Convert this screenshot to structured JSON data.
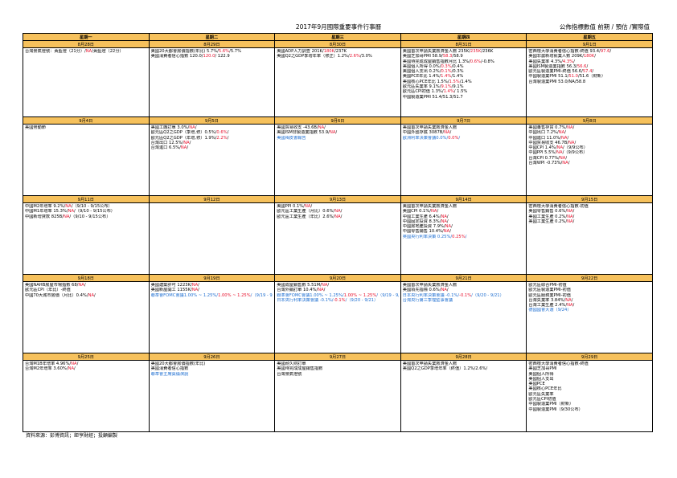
{
  "page": {
    "title": "2017年9月國際重要事件行事曆",
    "legend": "公佈指標數值 前期 / 預估 /實際值",
    "source": "資料來源：彭博資訊；鉅亨財經；投顧編製"
  },
  "weekdays": [
    "星期一",
    "星期二",
    "星期三",
    "星期四",
    "星期五"
  ],
  "weeks": [
    {
      "dates": [
        "8月28日",
        "8月29日",
        "8月30日",
        "8月31日",
        "9月1日"
      ],
      "cells": [
        [
          [
            "台灣景氣燈號：黃藍燈（21分）/",
            "NA",
            "/黃藍燈（22分）"
          ]
        ],
        [
          [
            "美國20大都會房價指數(年比) 5.7%/",
            "5.6%",
            "/5.7%"
          ],
          [
            "美國消費者信心指數 120.0/",
            "120.0",
            "/ 122.9"
          ]
        ],
        [
          [
            "美國ADP人力調查 201K/",
            "180K",
            "/237K"
          ],
          [
            "美國Q2之GDP季增年率（修正）1.2%/",
            "2.6%",
            "/3.0%"
          ]
        ],
        [
          [
            "美國首次申請失業救濟金人數 235K/",
            "235K",
            "/236K"
          ],
          [
            "美國芝加哥PMI 58.9/",
            "58.3",
            "/58.9"
          ],
          [
            "美國待完成成屋銷售指數月比 1.3%/",
            "0.6%",
            "/-0.8%"
          ],
          [
            "美國個人所得 0.0%/",
            "0.3%",
            "/0.4%"
          ],
          [
            "美國個人支出 0.2%/",
            "0.1%",
            "/0.3%"
          ],
          [
            "美國PCE年比 1.4%/",
            "1.4%",
            "/1.4%"
          ],
          [
            "美國核心PCE年比 1.5%/",
            "1.5%",
            "/1.4%"
          ],
          [
            "歐元區失業率 9.1%/",
            "9.1%",
            "/9.1%"
          ],
          [
            "歐元區CPI初值 1.3%/",
            "1.4%",
            "/ 1.5%"
          ],
          [
            "中國製造業PMI 51.4/51.3/51.7"
          ]
        ],
        [
          [
            "密西根大學消費者信心指數-終值 93.4/",
            "97.6",
            "/"
          ],
          [
            "美國非農新增就業人數 209K/",
            "180K",
            "/"
          ],
          [
            "美國失業率 4.3%/",
            "4.3%",
            "/"
          ],
          [
            "美國ISM製造業指數 56.3/",
            "56.6",
            "/"
          ],
          [
            "歐元區製造業PMI-終值 56.6/",
            "57.4",
            "/"
          ],
          [
            "中國製造業PMI 51.1/",
            "51.0",
            "/51.6（財新）"
          ],
          [
            "台灣製造業PMI 53.0/NA/58.8"
          ]
        ]
      ]
    },
    {
      "dates": [
        "9月4日",
        "9月5日",
        "9月6日",
        "9月7日",
        "9月8日"
      ],
      "cells": [
        [
          [
            "美國勞動節"
          ]
        ],
        [
          [
            "美國工廠訂單 3.0%/",
            "NA",
            "/"
          ],
          [
            "歐元區Q2之GDP（季增,修）0.5%/",
            "0.6%",
            "/"
          ],
          [
            "歐元區Q2之GDP（年增,修）1.9%/",
            "2.2%",
            "/"
          ],
          [
            "台灣出口 12.5%/",
            "NA",
            "/"
          ],
          [
            "台灣進口 6.5%/",
            "NA",
            "/"
          ]
        ],
        [
          [
            "美國貿易收支 -43.6B/",
            "NA",
            "/"
          ],
          [
            "美國ISM非製造業指數 53.9/",
            "NA",
            "/"
          ],
          [
            "美國褐皮書報告",
            null,
            null,
            "blue"
          ]
        ],
        [
          [
            "美國首次申請失業救濟金人數"
          ],
          [
            "中國外匯存底 3087B/",
            "NA",
            "/"
          ],
          [
            "歐洲利率決策會議0.0%/",
            "0.0%",
            "/",
            "blue"
          ]
        ],
        [
          [
            "美國躉售存貨 0.7%/",
            "NA",
            "/"
          ],
          [
            "中國出口 7.2%/",
            "NA",
            "/"
          ],
          [
            "中國進口 11.0%/",
            "NA",
            "/"
          ],
          [
            "中國貿易收支 46.7B/",
            "NA",
            "/"
          ],
          [
            "中國CPI 1.4%/",
            "NA",
            "/（9/9公布）"
          ],
          [
            "中國PPI 5.5%/",
            "NA",
            "/（9/9公布）"
          ],
          [
            "台灣CPI 0.77%/",
            "NA",
            "/"
          ],
          [
            "台灣WPI -0.73%/",
            "NA",
            "/"
          ]
        ]
      ]
    },
    {
      "dates": [
        "9月11日",
        "9月12日",
        "9月13日",
        "9月14日",
        "9月15日"
      ],
      "cells": [
        [
          [
            "中國M2年增率 9.2%/",
            "NA",
            "/（9/10 - 9/15公布）"
          ],
          [
            "中國M1年增率 15.3%/",
            "NA",
            "/（9/10 - 9/15公布）"
          ],
          [
            "中國新增貸款 825B/",
            "NA",
            "/（9/10 - 9/15公布）"
          ]
        ],
        [],
        [
          [
            "美國PPI 0.1%/",
            "NA",
            "/"
          ],
          [
            "歐元區工業生產（月比）0.6%/",
            "NA",
            "/"
          ],
          [
            "歐元區工業生產（年比）2.6%/",
            "NA",
            "/"
          ]
        ],
        [
          [
            "美國首次申請失業救濟金人數"
          ],
          [
            "美國CPI 0.1%/",
            "NA",
            "/"
          ],
          [
            "中國工業生產 6.4%/",
            "NA",
            "/"
          ],
          [
            "中國固定投資 8.3%/",
            "NA",
            "/"
          ],
          [
            "中國房地產投資 7.9%/",
            "NA",
            "/"
          ],
          [
            "中國零售銷售 10.4%/",
            "NA",
            "/"
          ],
          [
            "英國央行利率決策 0.25%/",
            "0.25%",
            "/",
            "blue"
          ]
        ],
        [
          [
            "密西根大學消費者信心指數-初值"
          ],
          [
            "美國零售銷售 0.6%/",
            "NA",
            "/"
          ],
          [
            "美國工業生產 0.2%/",
            "NA",
            "/"
          ],
          [
            "美國工業生產 0.2%/",
            "NA",
            "/"
          ]
        ]
      ]
    },
    {
      "dates": [
        "9月18日",
        "9月19日",
        "9月20日",
        "9月21日",
        "9月22日"
      ],
      "cells": [
        [
          [
            "美國NAHB房屋市場指數 68/",
            "NA",
            "/"
          ],
          [
            "歐元區CPI（年比）-終值"
          ],
          [
            "中國70大城市房價（月比）0.4%/",
            "NA",
            "/"
          ]
        ],
        [
          [
            "美國建築許可 1223K/",
            "NA",
            "/"
          ],
          [
            "美國新屋開工 1155K/",
            "NA",
            "/"
          ],
          [
            "聯準會FOMC會議1.00% ~ 1.25%/",
            "1.00% ~ 1.25%",
            "/（9/19 - 9/20）",
            "blue"
          ]
        ],
        [
          [
            "美國成屋銷售數 5.51M/",
            "NA",
            "/"
          ],
          [
            "台灣外銷訂單 10.4%/",
            "NA",
            "/"
          ],
          [
            "聯準會FOMC會議1.00% ~ 1.25%/",
            "1.00% ~ 1.25%",
            "/（9/19 - 9/20）",
            "blue"
          ],
          [
            "日本央行利率決策會議 -0.1%/",
            "-0.1%",
            "/（9/20 - 9/21）",
            "blue"
          ]
        ],
        [
          [
            "美國首次申請失業救濟金人數"
          ],
          [
            "美國領先指標 0.6%/",
            "NA",
            "/"
          ],
          [
            "日本央行利率決策會議 -0.1%/",
            "-0.1%",
            "/（9/20 - 9/21）",
            "blue"
          ],
          [
            "台灣央行第三季理監事會議",
            null,
            null,
            "blue"
          ]
        ],
        [
          [
            "歐元區綜合PMI-初值"
          ],
          [
            "歐元區製造業PMI-初值"
          ],
          [
            "歐元區服務業PMI-初值"
          ],
          [
            "台灣失業率 3.84%/",
            "NA",
            "/"
          ],
          [
            "台灣工業生產 2.4%/",
            "NA",
            "/"
          ],
          [
            "德國國會大選（9/24）",
            null,
            null,
            "blue"
          ]
        ]
      ]
    },
    {
      "dates": [
        "9月25日",
        "9月26日",
        "9月27日",
        "9月28日",
        "9月29日"
      ],
      "cells": [
        [
          [
            "台灣M1B年增率 4.96%/",
            "NA",
            "/"
          ],
          [
            "台灣M2年增率 3.60%/",
            "NA",
            "/"
          ]
        ],
        [
          [
            "美國20大都會房價指數(年比)"
          ],
          [
            "美國消費者信心指數"
          ],
          [
            "聯準會主席葉倫演說",
            null,
            null,
            "blue"
          ]
        ],
        [
          [
            "美國耐久財訂單"
          ],
          [
            "美國待完成成屋銷售指數"
          ],
          [
            "台灣景氣燈號"
          ]
        ],
        [
          [
            "美國首次申請失業救濟金人數"
          ],
          [
            "美國Q2之GDP季增年率（終值）1.2%/2.6%/"
          ]
        ],
        [
          [
            "密西根大學消費者信心指數-終值"
          ],
          [
            "美國芝加哥PMI"
          ],
          [
            "美國個人所得"
          ],
          [
            "美國個人支出"
          ],
          [
            "美國PCE"
          ],
          [
            "美國核心PCE年比"
          ],
          [
            "歐元區失業率"
          ],
          [
            "歐元區CPI初值"
          ],
          [
            "中國製造業PMI（財新）"
          ],
          [
            "中國製造業PMI（9/30公布）"
          ]
        ]
      ]
    }
  ]
}
